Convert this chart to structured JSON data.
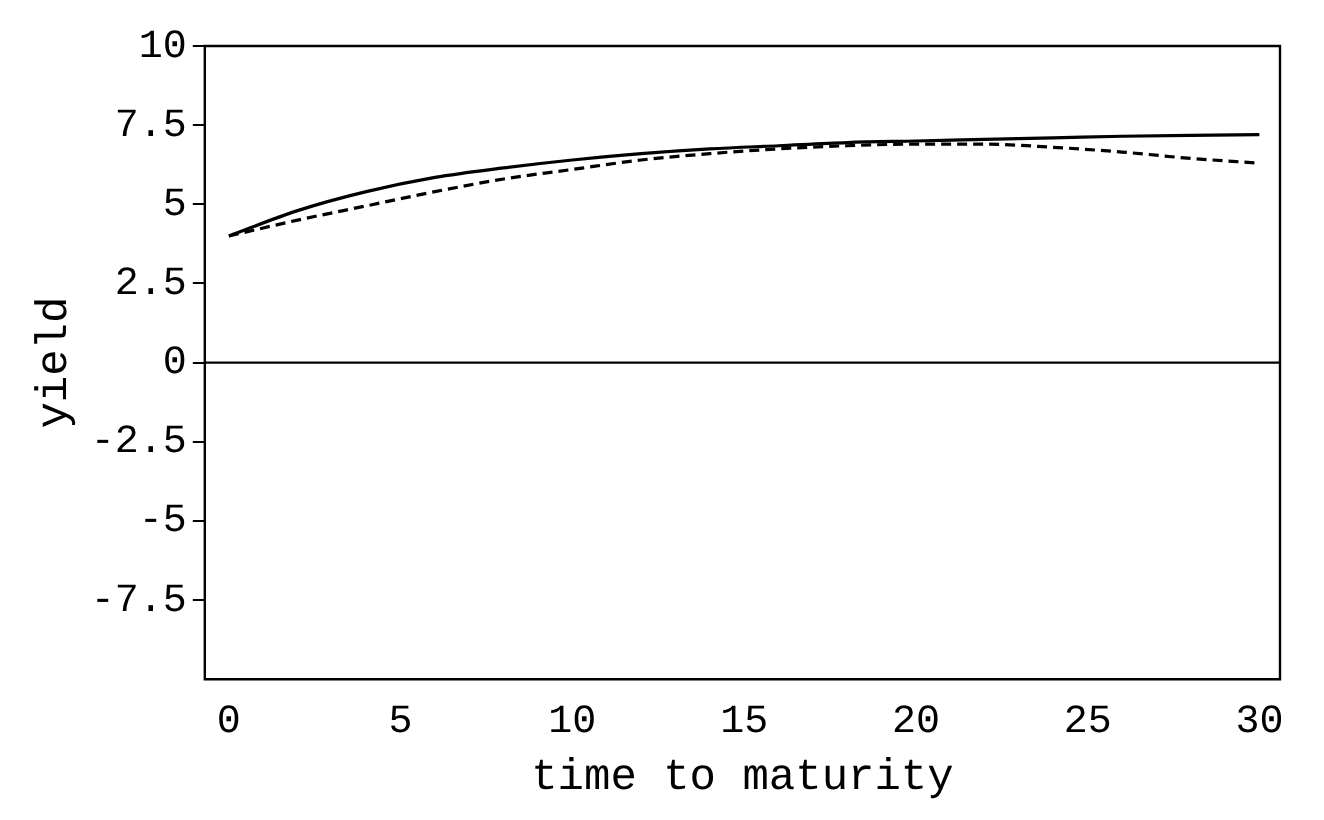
{
  "chart_data": {
    "type": "line",
    "xlabel": "time to maturity",
    "ylabel": "yield",
    "xlim": [
      -0.7,
      30.6
    ],
    "ylim": [
      -10,
      10
    ],
    "xticks": [
      0,
      5,
      10,
      15,
      20,
      25,
      30
    ],
    "yticks": [
      10,
      7.5,
      5,
      2.5,
      0,
      -2.5,
      -5,
      -7.5
    ],
    "grid": false,
    "legend": false,
    "marker": "none",
    "ref_lines": [
      {
        "axis": "y",
        "value": 0,
        "color": "#000000"
      }
    ],
    "series": [
      {
        "color": "#000000",
        "line_style": "solid",
        "x": [
          0,
          2,
          4,
          6,
          8,
          10,
          12,
          14,
          16,
          18,
          20,
          22,
          24,
          26,
          28,
          30
        ],
        "values": [
          4,
          4.8,
          5.4,
          5.85,
          6.15,
          6.4,
          6.6,
          6.75,
          6.85,
          6.95,
          7.0,
          7.05,
          7.1,
          7.15,
          7.18,
          7.2
        ]
      },
      {
        "color": "#000000",
        "line_style": "dashed",
        "x": [
          0,
          2,
          4,
          6,
          8,
          10,
          12,
          14,
          16,
          18,
          20,
          22,
          24,
          26,
          28,
          30
        ],
        "values": [
          4,
          4.5,
          4.95,
          5.4,
          5.8,
          6.1,
          6.4,
          6.6,
          6.75,
          6.85,
          6.9,
          6.9,
          6.8,
          6.65,
          6.45,
          6.3
        ]
      }
    ]
  }
}
